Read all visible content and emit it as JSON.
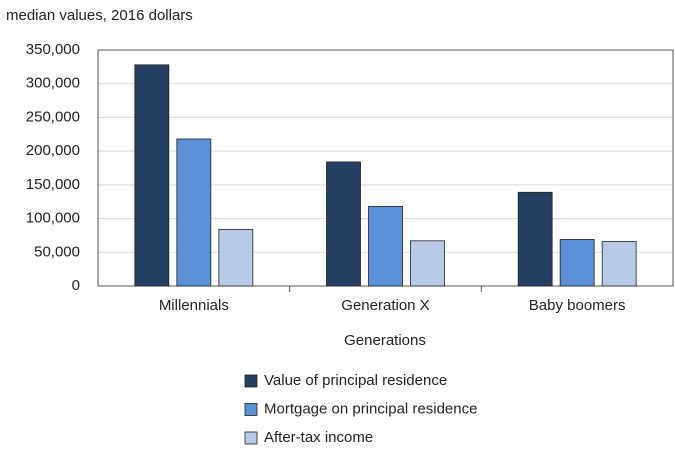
{
  "chart_data": {
    "type": "bar",
    "y_axis_label": "median values, 2016 dollars",
    "x_axis_label": "Generations",
    "categories": [
      "Millennials",
      "Generation X",
      "Baby boomers"
    ],
    "series": [
      {
        "name": "Value of principal residence",
        "color": "#253f63",
        "values": [
          328000,
          184000,
          139000
        ]
      },
      {
        "name": "Mortgage on principal residence",
        "color": "#5b8fd6",
        "values": [
          218000,
          118000,
          69000
        ]
      },
      {
        "name": "After-tax income",
        "color": "#b8cbe6",
        "values": [
          84000,
          67000,
          66000
        ]
      }
    ],
    "ylim": [
      0,
      350000
    ],
    "yticks": [
      0,
      {
        "value": 50000,
        "label": "50,000"
      },
      {
        "value": 100000,
        "label": "100,000"
      },
      {
        "value": 150000,
        "label": "150,000"
      },
      {
        "value": 200000,
        "label": "200,000"
      },
      {
        "value": 250000,
        "label": "250,000"
      },
      {
        "value": 300000,
        "label": "300,000"
      },
      {
        "value": 350000,
        "label": "350,000"
      }
    ],
    "grid": true
  }
}
